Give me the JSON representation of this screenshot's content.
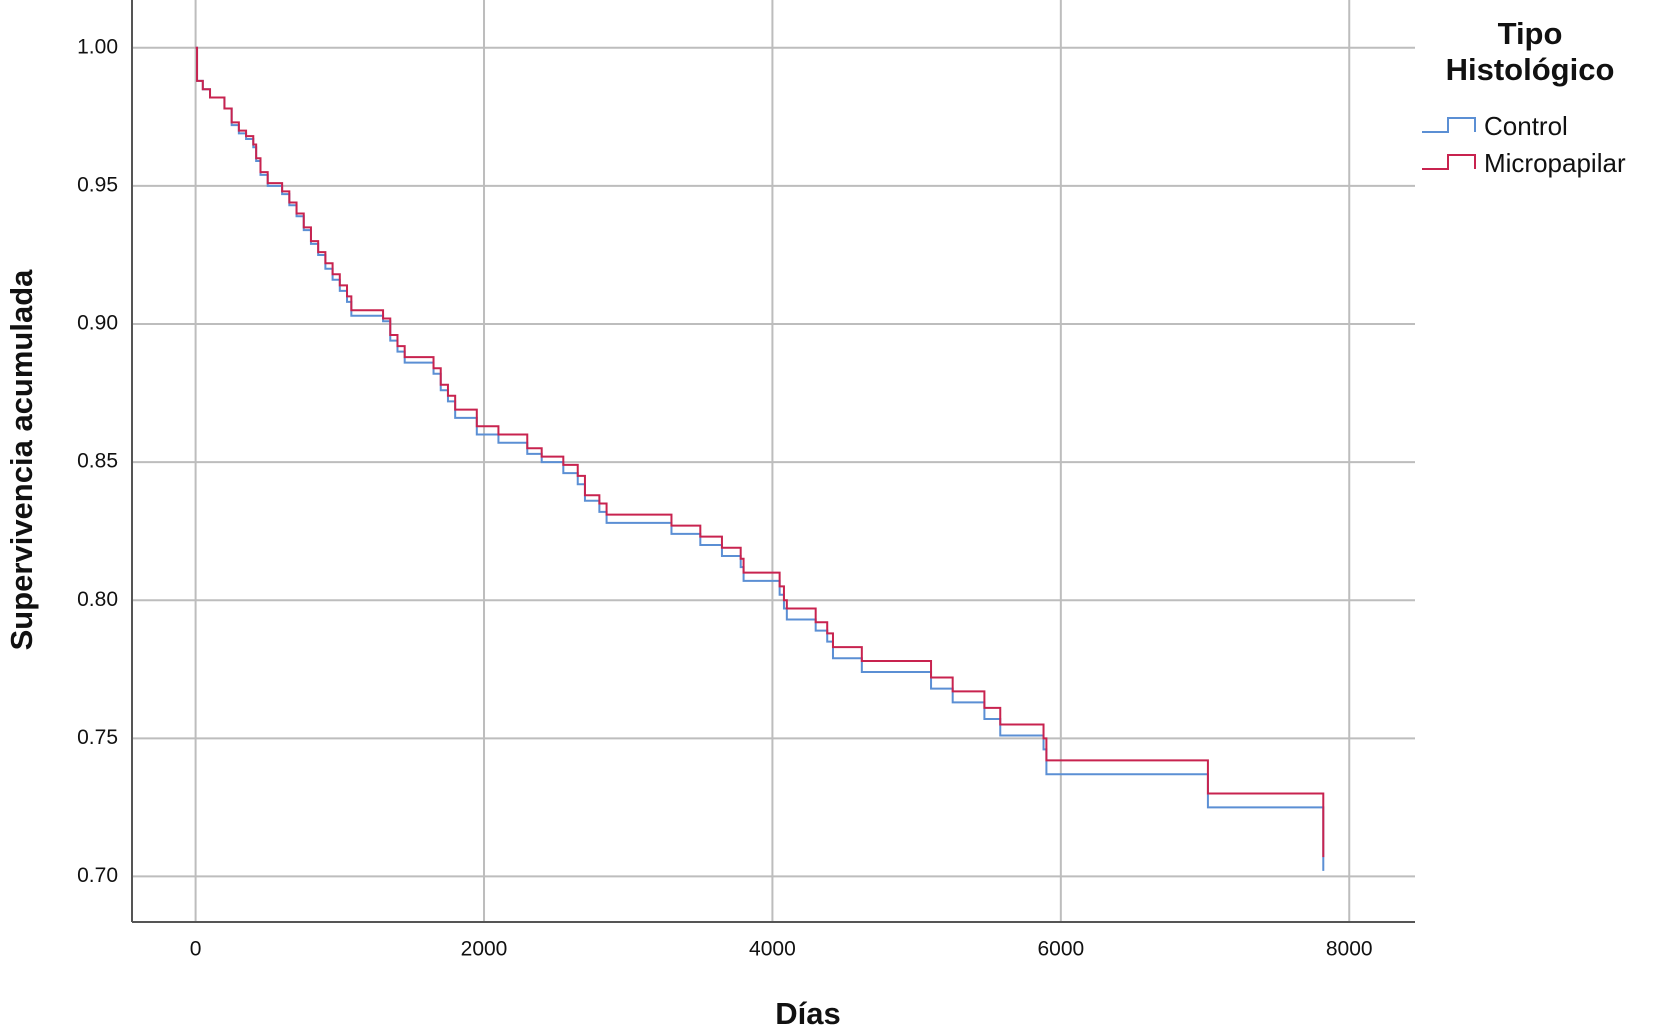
{
  "chart_data": {
    "type": "step",
    "xlabel": "Días",
    "ylabel": "Supervivencia acumulada",
    "legend_title": "Tipo Histológico",
    "x": [
      0,
      10,
      50,
      100,
      200,
      250,
      300,
      350,
      400,
      420,
      450,
      500,
      600,
      650,
      700,
      750,
      800,
      850,
      900,
      950,
      1000,
      1050,
      1080,
      1300,
      1350,
      1400,
      1450,
      1650,
      1700,
      1750,
      1800,
      1950,
      2100,
      2300,
      2400,
      2550,
      2650,
      2700,
      2800,
      2850,
      3300,
      3500,
      3650,
      3780,
      3800,
      4050,
      4080,
      4100,
      4300,
      4380,
      4420,
      4620,
      5100,
      5250,
      5470,
      5580,
      5880,
      5900,
      7020,
      7820
    ],
    "series": [
      {
        "name": "Control",
        "color": "#5b8fd4",
        "values": [
          1.0,
          0.988,
          0.985,
          0.982,
          0.978,
          0.972,
          0.969,
          0.967,
          0.964,
          0.959,
          0.954,
          0.95,
          0.947,
          0.943,
          0.939,
          0.934,
          0.929,
          0.925,
          0.92,
          0.916,
          0.912,
          0.908,
          0.903,
          0.901,
          0.894,
          0.89,
          0.886,
          0.882,
          0.876,
          0.872,
          0.866,
          0.86,
          0.857,
          0.853,
          0.85,
          0.846,
          0.842,
          0.836,
          0.832,
          0.828,
          0.824,
          0.82,
          0.816,
          0.812,
          0.807,
          0.802,
          0.797,
          0.793,
          0.789,
          0.785,
          0.779,
          0.774,
          0.768,
          0.763,
          0.757,
          0.751,
          0.746,
          0.737,
          0.725,
          0.702
        ]
      },
      {
        "name": "Micropapilar",
        "color": "#c8234f",
        "values": [
          1.0,
          0.988,
          0.985,
          0.982,
          0.978,
          0.973,
          0.97,
          0.968,
          0.965,
          0.96,
          0.955,
          0.951,
          0.948,
          0.944,
          0.94,
          0.935,
          0.93,
          0.926,
          0.922,
          0.918,
          0.914,
          0.91,
          0.905,
          0.902,
          0.896,
          0.892,
          0.888,
          0.884,
          0.878,
          0.874,
          0.869,
          0.863,
          0.86,
          0.855,
          0.852,
          0.849,
          0.845,
          0.838,
          0.835,
          0.831,
          0.827,
          0.823,
          0.819,
          0.815,
          0.81,
          0.805,
          0.8,
          0.797,
          0.792,
          0.788,
          0.783,
          0.778,
          0.772,
          0.767,
          0.761,
          0.755,
          0.75,
          0.742,
          0.73,
          0.707
        ]
      }
    ],
    "xlim": [
      -441,
      8456
    ],
    "ylim": [
      0.6835,
      1.0173
    ],
    "xticks": [
      0,
      2000,
      4000,
      6000,
      8000
    ],
    "yticks": [
      {
        "value": 0.7,
        "label": "0.70"
      },
      {
        "value": 0.75,
        "label": "0.75"
      },
      {
        "value": 0.8,
        "label": "0.80"
      },
      {
        "value": 0.85,
        "label": "0.85"
      },
      {
        "value": 0.9,
        "label": "0.90"
      },
      {
        "value": 0.95,
        "label": "0.95"
      },
      {
        "value": 1.0,
        "label": "1.00"
      }
    ],
    "grid": true
  }
}
